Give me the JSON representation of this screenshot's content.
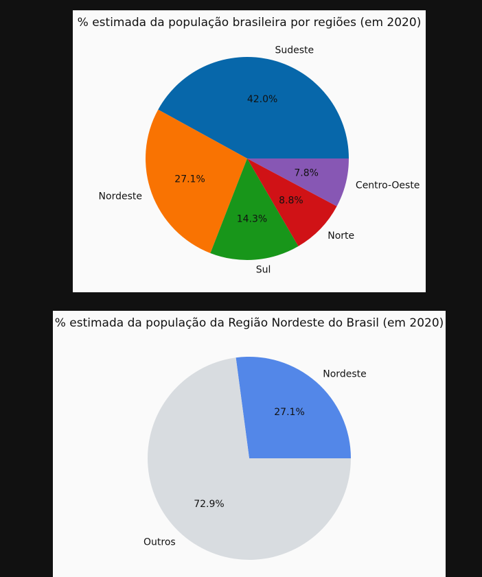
{
  "chart_data": [
    {
      "type": "pie",
      "title": "% estimada da população brasileira por regiões (em 2020)",
      "categories": [
        "Sudeste",
        "Nordeste",
        "Sul",
        "Norte",
        "Centro-Oeste"
      ],
      "values": [
        42.0,
        27.1,
        14.3,
        8.8,
        7.8
      ],
      "value_labels": [
        "42.0%",
        "27.1%",
        "14.3%",
        "8.8%",
        "7.8%"
      ],
      "colors": [
        "#0767aa",
        "#f97302",
        "#18961a",
        "#d01216",
        "#8757b4"
      ],
      "start_angle_deg": 0,
      "direction": "counterclockwise"
    },
    {
      "type": "pie",
      "title": "% estimada da população da Região Nordeste do Brasil (em 2020)",
      "categories": [
        "Nordeste",
        "Outros"
      ],
      "values": [
        27.1,
        72.9
      ],
      "value_labels": [
        "27.1%",
        "72.9%"
      ],
      "colors": [
        "#5387e8",
        "#d8dce0"
      ],
      "start_angle_deg": 0,
      "direction": "counterclockwise"
    }
  ]
}
